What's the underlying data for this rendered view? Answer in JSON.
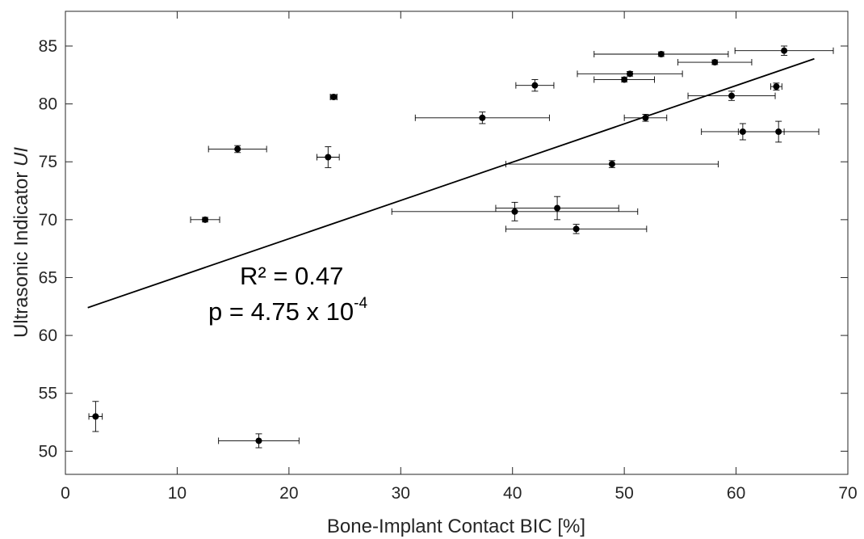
{
  "chart_data": {
    "type": "scatter",
    "title": "",
    "xlabel": "Bone-Implant Contact BIC [%]",
    "ylabel_prefix": "Ultrasonic Indicator ",
    "ylabel_italic": "UI",
    "xlim": [
      0,
      70
    ],
    "ylim": [
      48,
      88
    ],
    "x_ticks": [
      "0",
      "10",
      "20",
      "30",
      "40",
      "50",
      "60",
      "70"
    ],
    "y_ticks": [
      "50",
      "55",
      "60",
      "65",
      "70",
      "75",
      "80",
      "85"
    ],
    "grid": false,
    "legend": "none",
    "marker_color": "#000000",
    "points": [
      {
        "x": 2.7,
        "y": 53.0,
        "xerr": 0.6,
        "yerr": 1.3
      },
      {
        "x": 17.3,
        "y": 50.9,
        "xerr": 3.6,
        "yerr": 0.6
      },
      {
        "x": 12.5,
        "y": 70.0,
        "xerr": 1.3,
        "yerr": 0.2
      },
      {
        "x": 15.4,
        "y": 76.1,
        "xerr": 2.6,
        "yerr": 0.3
      },
      {
        "x": 23.5,
        "y": 75.4,
        "xerr": 1.0,
        "yerr": 0.9
      },
      {
        "x": 24.0,
        "y": 80.6,
        "xerr": 0.3,
        "yerr": 0.2
      },
      {
        "x": 37.3,
        "y": 78.8,
        "xerr": 6.0,
        "yerr": 0.5
      },
      {
        "x": 42.0,
        "y": 81.6,
        "xerr": 1.7,
        "yerr": 0.5
      },
      {
        "x": 40.2,
        "y": 70.7,
        "xerr": 11.0,
        "yerr": 0.8
      },
      {
        "x": 44.0,
        "y": 71.0,
        "xerr": 5.5,
        "yerr": 1.0
      },
      {
        "x": 45.7,
        "y": 69.2,
        "xerr": 6.3,
        "yerr": 0.4
      },
      {
        "x": 48.9,
        "y": 74.8,
        "xerr": 9.5,
        "yerr": 0.3
      },
      {
        "x": 50.0,
        "y": 82.1,
        "xerr": 2.7,
        "yerr": 0.2
      },
      {
        "x": 50.5,
        "y": 82.6,
        "xerr": 4.7,
        "yerr": 0.2
      },
      {
        "x": 51.9,
        "y": 78.8,
        "xerr": 1.9,
        "yerr": 0.3
      },
      {
        "x": 53.3,
        "y": 84.3,
        "xerr": 6.0,
        "yerr": 0.2
      },
      {
        "x": 58.1,
        "y": 83.6,
        "xerr": 3.3,
        "yerr": 0.2
      },
      {
        "x": 59.6,
        "y": 80.7,
        "xerr": 3.9,
        "yerr": 0.4
      },
      {
        "x": 60.6,
        "y": 77.6,
        "xerr": 3.7,
        "yerr": 0.7
      },
      {
        "x": 63.6,
        "y": 81.5,
        "xerr": 0.5,
        "yerr": 0.3
      },
      {
        "x": 63.8,
        "y": 77.6,
        "xerr": 3.6,
        "yerr": 0.9
      },
      {
        "x": 64.3,
        "y": 84.6,
        "xerr": 4.4,
        "yerr": 0.4
      }
    ],
    "fit_line": {
      "x": [
        2,
        67
      ],
      "y": [
        62.4,
        83.9
      ]
    },
    "annotations": {
      "r2": "R² = 0.47",
      "p_value": "p = 4.75 x 10",
      "p_exponent": "-4"
    }
  }
}
